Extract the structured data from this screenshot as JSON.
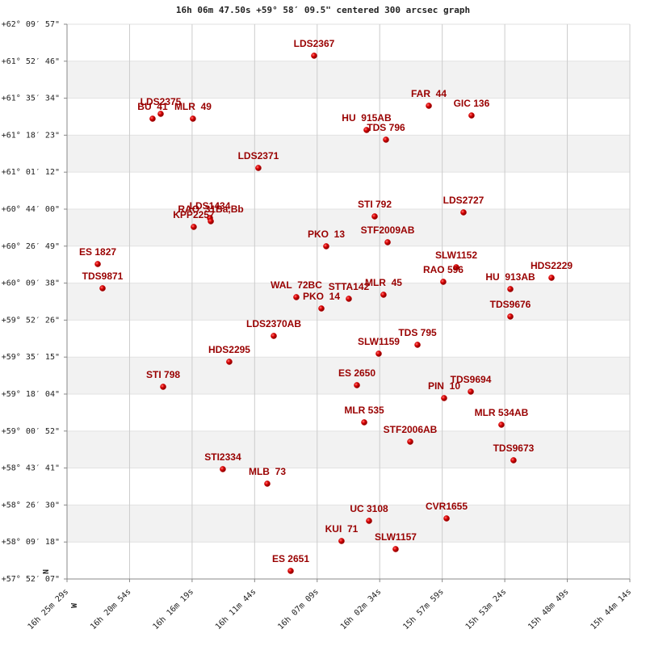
{
  "chart_data": {
    "type": "scatter",
    "title": "16h 06m 47.50s +59° 58′ 09.5\" centered 300 arcsec graph",
    "y_label": "N",
    "x_label": "W",
    "xlim": [
      16.42472,
      15.73722
    ],
    "ylim": [
      57.86861,
      62.16583
    ],
    "xticks": [
      {
        "value": 16.42472,
        "label": "16h 25m 29s"
      },
      {
        "value": 16.34833,
        "label": "16h 20m 54s"
      },
      {
        "value": 16.27194,
        "label": "16h 16m 19s"
      },
      {
        "value": 16.19556,
        "label": "16h 11m 44s"
      },
      {
        "value": 16.11917,
        "label": "16h 07m 09s"
      },
      {
        "value": 16.04278,
        "label": "16h 02m 34s"
      },
      {
        "value": 15.96639,
        "label": "15h 57m 59s"
      },
      {
        "value": 15.89,
        "label": "15h 53m 24s"
      },
      {
        "value": 15.81361,
        "label": "15h 48m 49s"
      },
      {
        "value": 15.73722,
        "label": "15h 44m 14s"
      }
    ],
    "yticks": [
      {
        "value": 62.16583,
        "label": "+62° 09′ 57\""
      },
      {
        "value": 61.87944,
        "label": "+61° 52′ 46\""
      },
      {
        "value": 61.59278,
        "label": "+61° 35′ 34\""
      },
      {
        "value": 61.30639,
        "label": "+61° 18′ 23\""
      },
      {
        "value": 61.02,
        "label": "+61° 01′ 12\""
      },
      {
        "value": 60.73333,
        "label": "+60° 44′ 00\""
      },
      {
        "value": 60.44694,
        "label": "+60° 26′ 49\""
      },
      {
        "value": 60.16056,
        "label": "+60° 09′ 38\""
      },
      {
        "value": 59.87389,
        "label": "+59° 52′ 26\""
      },
      {
        "value": 59.5875,
        "label": "+59° 35′ 15\""
      },
      {
        "value": 59.30111,
        "label": "+59° 18′ 04\""
      },
      {
        "value": 59.01444,
        "label": "+59° 00′ 52\""
      },
      {
        "value": 58.72806,
        "label": "+58° 43′ 41\""
      },
      {
        "value": 58.44167,
        "label": "+58° 26′ 30\""
      },
      {
        "value": 58.155,
        "label": "+58° 09′ 18\""
      },
      {
        "value": 57.86861,
        "label": "+57° 52′ 07\""
      }
    ],
    "grid": true,
    "color": "#cc0000",
    "label_color": "#990000",
    "band_color": "#f2f2f2",
    "point_labels": [
      "LDS2367",
      "LDS2375",
      "BU  41",
      "MLR  49",
      "FAR  44",
      "GIC 136",
      "HU  915AB",
      "TDS 796",
      "LDS2371",
      "LDS1434",
      "RAO  31Ba,Bb",
      "KPP2257",
      "STI 792",
      "LDS2727",
      "STF2009AB",
      "PKO  13",
      "ES 1827",
      "TDS9871",
      "SLW1152",
      "RAO 596",
      "HDS2229",
      "HU  913AB",
      "WAL  72BC",
      "PKO  14",
      "STTA142",
      "MLR  45",
      "TDS9676",
      "LDS2370AB",
      "SLW1159",
      "TDS 795",
      "HDS2295",
      "STI 798",
      "ES 2650",
      "PIN  10",
      "TDS9694",
      "MLR 535",
      "MLR 534AB",
      "STF2006AB",
      "TDS9673",
      "STI2334",
      "MLB  73",
      "UC 3108",
      "CVR1655",
      "KUI  71",
      "SLW1157",
      "ES 2651"
    ],
    "x": [
      16.1229,
      16.3103,
      16.3202,
      16.2709,
      15.9828,
      15.9306,
      16.0588,
      16.0351,
      16.191,
      16.2501,
      16.2491,
      16.2699,
      16.0489,
      15.9404,
      16.0331,
      16.1081,
      16.3872,
      16.3813,
      15.9493,
      15.9651,
      15.8329,
      15.8832,
      16.1446,
      16.114,
      16.0805,
      16.0381,
      15.8832,
      16.1722,
      16.044,
      15.9966,
      16.2265,
      16.3073,
      16.0706,
      15.9641,
      15.9315,
      16.0617,
      15.8941,
      16.0055,
      15.8793,
      16.2344,
      16.1801,
      16.0558,
      15.9611,
      16.0894,
      16.0233,
      16.1515
    ],
    "values": [
      61.9219,
      61.4715,
      61.434,
      61.434,
      61.5341,
      61.459,
      61.3464,
      61.2714,
      61.0524,
      60.6646,
      60.6396,
      60.5958,
      60.6771,
      60.7084,
      60.477,
      60.4457,
      60.3081,
      60.1204,
      60.283,
      60.1705,
      60.2017,
      60.1142,
      60.0516,
      59.964,
      60.0391,
      60.0704,
      59.9015,
      59.7514,
      59.6138,
      59.6826,
      59.5512,
      59.3573,
      59.3698,
      59.2697,
      59.3198,
      59.0821,
      59.0633,
      58.9319,
      58.7881,
      58.7193,
      58.6067,
      58.3189,
      58.3377,
      58.1626,
      58.1,
      57.9311
    ]
  }
}
